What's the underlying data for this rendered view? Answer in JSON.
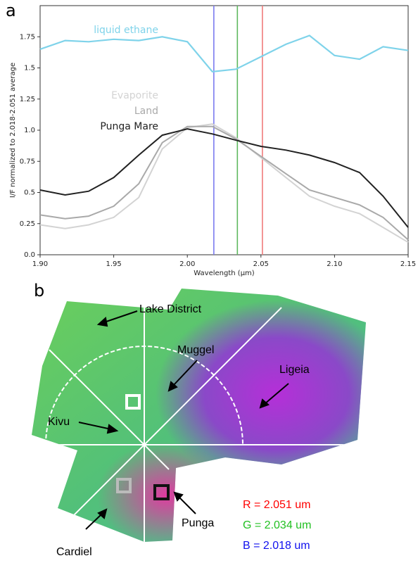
{
  "panels": {
    "a": "a",
    "b": "b"
  },
  "chart_data": {
    "type": "line",
    "xlabel": "Wavelength (μm)",
    "ylabel": "I/F normalized to 2.018-2.051 average",
    "x": [
      1.9,
      1.917,
      1.933,
      1.95,
      1.967,
      1.983,
      2.0,
      2.017,
      2.033,
      2.05,
      2.067,
      2.083,
      2.1,
      2.117,
      2.133,
      2.15
    ],
    "series": [
      {
        "name": "liquid ethane",
        "color": "#7fd3ea",
        "values": [
          1.65,
          1.72,
          1.71,
          1.73,
          1.72,
          1.75,
          1.71,
          1.47,
          1.49,
          1.59,
          1.69,
          1.76,
          1.6,
          1.57,
          1.67,
          1.64
        ]
      },
      {
        "name": "Evaporite",
        "color": "#d3d3d3",
        "values": [
          0.24,
          0.21,
          0.24,
          0.3,
          0.46,
          0.85,
          1.02,
          1.05,
          0.94,
          0.78,
          0.62,
          0.47,
          0.39,
          0.33,
          0.22,
          0.1
        ]
      },
      {
        "name": "Land",
        "color": "#a9a9a9",
        "values": [
          0.32,
          0.29,
          0.31,
          0.39,
          0.57,
          0.9,
          1.03,
          1.03,
          0.93,
          0.79,
          0.65,
          0.52,
          0.46,
          0.4,
          0.3,
          0.12
        ]
      },
      {
        "name": "Punga Mare",
        "color": "#222222",
        "values": [
          0.52,
          0.48,
          0.51,
          0.62,
          0.8,
          0.96,
          1.01,
          0.97,
          0.92,
          0.87,
          0.84,
          0.8,
          0.74,
          0.66,
          0.47,
          0.22
        ]
      }
    ],
    "vlines": [
      {
        "x": 2.018,
        "color": "#7b7bf0"
      },
      {
        "x": 2.034,
        "color": "#5fb85f"
      },
      {
        "x": 2.051,
        "color": "#f07b7b"
      }
    ],
    "xlim": [
      1.9,
      2.15
    ],
    "ylim": [
      0,
      2.0
    ],
    "xticks": [
      {
        "value": 1.9,
        "label": "1.90"
      },
      1.95,
      {
        "value": 2,
        "label": "2.00"
      },
      2.05,
      {
        "value": 2.1,
        "label": "2.10"
      },
      2.15
    ],
    "yticks": [
      {
        "value": 0,
        "label": "0.0"
      },
      0.25,
      0.5,
      0.75,
      {
        "value": 1,
        "label": "1.0"
      },
      1.25,
      1.5,
      1.75
    ]
  },
  "map": {
    "labels": [
      "Lake District",
      "Muggel",
      "Ligeia",
      "Kivu",
      "Punga",
      "Cardiel"
    ],
    "channels": [
      "R = 2.051 um",
      "G = 2.034 um",
      "B = 2.018 um"
    ]
  }
}
